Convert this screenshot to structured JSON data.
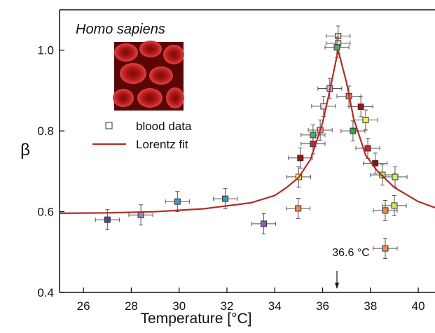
{
  "chart_data": {
    "type": "scatter",
    "annotations": [
      "Homo sapiens",
      "36.6 °C"
    ],
    "x_label": "Temperature [°C]",
    "y_label": "β",
    "xlim": [
      25,
      40.7
    ],
    "ylim": [
      0.4,
      1.1
    ],
    "xticks": [
      26,
      28,
      30,
      32,
      34,
      36,
      38,
      40
    ],
    "yticks": [
      0.4,
      0.6,
      0.8,
      {
        "value": 1,
        "label": "1.0"
      }
    ],
    "marker_x": 36.6,
    "legend": "upper left",
    "series": [
      {
        "name": "blood data",
        "style": "points",
        "color": "#333333",
        "x": [
          27.0,
          28.4,
          29.93,
          31.93,
          33.54,
          34.98,
          35.0,
          35.07,
          35.6,
          35.6,
          35.9,
          36.04,
          36.3,
          36.65,
          36.65,
          36.6,
          37.1,
          37.6,
          37.8,
          37.27,
          37.89,
          38.2,
          38.5,
          39.03,
          38.62,
          39.0,
          38.62
        ],
        "y": [
          0.58,
          0.592,
          0.625,
          0.632,
          0.57,
          0.608,
          0.686,
          0.733,
          0.768,
          0.79,
          0.802,
          0.861,
          0.905,
          1.035,
          1.017,
          1.007,
          0.886,
          0.86,
          0.827,
          0.8,
          0.757,
          0.72,
          0.691,
          0.686,
          0.603,
          0.615,
          0.509
        ],
        "xerr": 0.5,
        "yerr": 0.025,
        "colors": [
          "#4a4aa8",
          "#8a86bb",
          "#3a9ad0",
          "#3a9ab8",
          "#a055c0",
          "#ee8a5a",
          "#fff055",
          "#991515",
          "#cc2424",
          "#4aaa66",
          "#f0a0a0",
          "#ffe0e0",
          "#b0c0ee",
          "#eeddcc",
          "#ffccdd",
          "#55aa55",
          "#ee7a5a",
          "#991515",
          "#ffee44",
          "#33aa44",
          "#cc2424",
          "#881515",
          "#ccee66",
          "#ccee66",
          "#ee8a4a",
          "#ccee55",
          "#ee8a5a"
        ]
      },
      {
        "name": "Lorentz fit",
        "style": "line",
        "color": "#b22a2a",
        "x": [
          25,
          27,
          29,
          31,
          33,
          34,
          34.5,
          35,
          35.5,
          36,
          36.3,
          36.65,
          37,
          37.3,
          37.8,
          38.3,
          39,
          40,
          40.7
        ],
        "y": [
          0.596,
          0.597,
          0.6,
          0.607,
          0.622,
          0.64,
          0.66,
          0.685,
          0.73,
          0.82,
          0.9,
          1.0,
          0.92,
          0.83,
          0.74,
          0.7,
          0.66,
          0.625,
          0.61
        ]
      }
    ]
  }
}
